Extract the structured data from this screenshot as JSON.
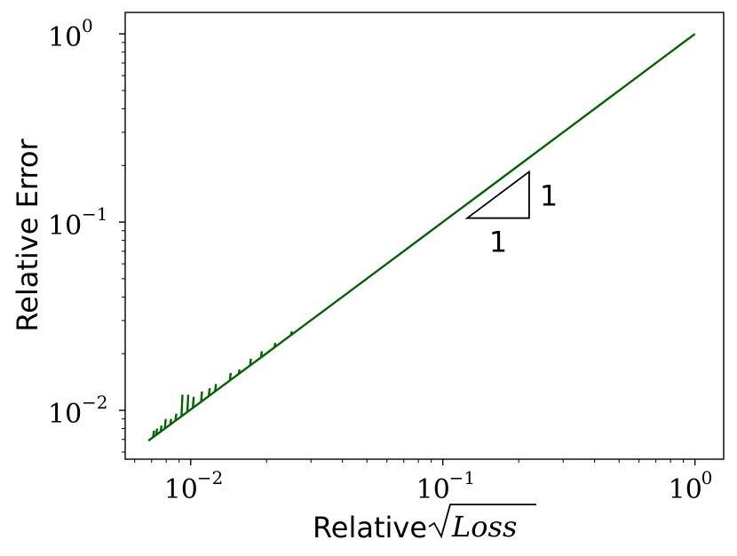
{
  "chart_data": {
    "type": "line",
    "xlabel_prefix": "Relative",
    "xlabel_math": "Loss",
    "ylabel": "Relative Error",
    "xscale": "log",
    "yscale": "log",
    "xlim": [
      0.0055,
      1.3
    ],
    "ylim": [
      0.0055,
      1.3
    ],
    "grid": false,
    "legend": "none",
    "line_color": "#006400",
    "x_ticks": [
      {
        "base": "10",
        "exp": "−2",
        "value": 0.01
      },
      {
        "base": "10",
        "exp": "−1",
        "value": 0.1
      },
      {
        "base": "10",
        "exp": "0",
        "value": 1
      }
    ],
    "y_ticks": [
      {
        "base": "10",
        "exp": "−2",
        "value": 0.01
      },
      {
        "base": "10",
        "exp": "−1",
        "value": 0.1
      },
      {
        "base": "10",
        "exp": "0",
        "value": 1
      }
    ],
    "series": [
      {
        "x": [
          0.0068,
          0.007,
          0.0072,
          0.0075,
          0.0078,
          0.0082,
          0.0086,
          0.009,
          0.0095,
          0.01,
          0.0105,
          0.011,
          0.0117,
          0.0125,
          0.013,
          0.014,
          0.015,
          0.016,
          0.0172,
          0.0185,
          0.02,
          0.0215,
          0.023,
          0.025,
          0.03,
          0.035,
          0.04,
          0.05,
          0.06,
          0.08,
          0.1,
          0.15,
          0.2,
          0.3,
          0.4,
          0.5,
          0.6,
          0.7,
          0.8,
          0.9,
          1.0
        ],
        "y": [
          0.0069,
          0.0071,
          0.0073,
          0.0076,
          0.0079,
          0.0083,
          0.0087,
          0.0091,
          0.0096,
          0.0101,
          0.0106,
          0.0111,
          0.0118,
          0.0126,
          0.0131,
          0.0141,
          0.0151,
          0.0161,
          0.0173,
          0.0186,
          0.0201,
          0.0216,
          0.0231,
          0.0251,
          0.0301,
          0.0351,
          0.0401,
          0.0501,
          0.0601,
          0.0801,
          0.1001,
          0.15,
          0.2,
          0.3,
          0.4,
          0.5,
          0.6,
          0.7,
          0.8,
          0.9,
          1.0
        ],
        "spikes": [
          {
            "x": 0.0071,
            "y": 0.0078
          },
          {
            "x": 0.0073,
            "y": 0.008
          },
          {
            "x": 0.0076,
            "y": 0.0083
          },
          {
            "x": 0.0079,
            "y": 0.009
          },
          {
            "x": 0.0083,
            "y": 0.009
          },
          {
            "x": 0.0087,
            "y": 0.0096
          },
          {
            "x": 0.0092,
            "y": 0.0121
          },
          {
            "x": 0.0097,
            "y": 0.0121
          },
          {
            "x": 0.0102,
            "y": 0.0118
          },
          {
            "x": 0.011,
            "y": 0.0126
          },
          {
            "x": 0.0118,
            "y": 0.0131
          },
          {
            "x": 0.0125,
            "y": 0.0138
          },
          {
            "x": 0.0143,
            "y": 0.0158
          },
          {
            "x": 0.0155,
            "y": 0.0165
          },
          {
            "x": 0.0172,
            "y": 0.0188
          },
          {
            "x": 0.019,
            "y": 0.0206
          },
          {
            "x": 0.0215,
            "y": 0.0228
          },
          {
            "x": 0.025,
            "y": 0.0263
          }
        ]
      }
    ],
    "slope_triangle": {
      "x_left": 0.125,
      "x_right": 0.22,
      "y_bottom": 0.105,
      "y_top": 0.185,
      "horizontal_label": "1",
      "vertical_label": "1"
    }
  }
}
